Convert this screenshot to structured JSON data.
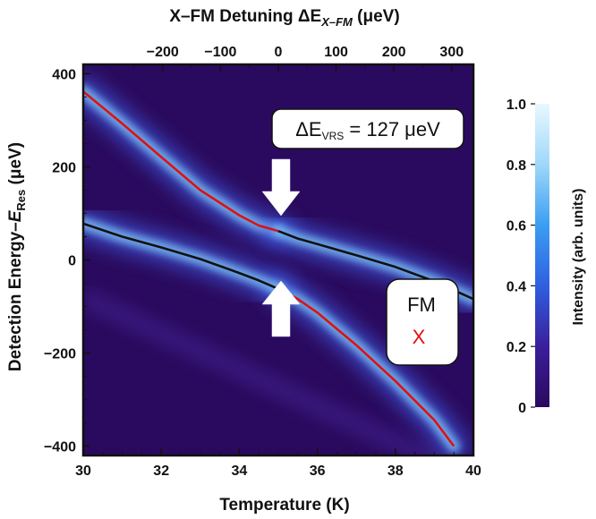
{
  "chart_data": {
    "type": "heatmap",
    "title": "",
    "xlabel": "Temperature (K)",
    "xlim": [
      30,
      40
    ],
    "x_ticks": [
      30,
      32,
      34,
      36,
      38,
      40
    ],
    "ylabel": "Detection Energy-E_Res (μeV)",
    "ylabel_parts": {
      "prefix": "Detection Energy–",
      "var": "E",
      "sub": "Res",
      "suffix": " (μeV)"
    },
    "ylim": [
      -420,
      420
    ],
    "y_ticks": [
      400,
      200,
      0,
      -200,
      -400
    ],
    "top_xlabel": "X-FM Detuning ΔE_X-FM (μeV)",
    "top_xlabel_parts": {
      "prefix": "X–FM Detuning ΔE",
      "sub": "X–FM",
      "suffix": " (μeV)"
    },
    "top_x_ticks": [
      -200,
      -100,
      0,
      100,
      200,
      300
    ],
    "top_x_ticks_labels": [
      "−200",
      "−100",
      "0",
      "100",
      "200",
      "300"
    ],
    "top_x_mapping": {
      "temperature_at_zero": 35.0,
      "detuning_per_K": 67.5
    },
    "colorbar": {
      "label": "Intensity (arb. units)",
      "range": [
        0,
        1
      ],
      "ticks": [
        0,
        0.2,
        0.4,
        0.6,
        0.8,
        1.0
      ],
      "tick_labels": [
        "0",
        "0.2",
        "0.4",
        "0.6",
        "0.8",
        "1.0"
      ],
      "colors": [
        "#2a0a5e",
        "#3a1f9a",
        "#2f5fe0",
        "#3b9ef2",
        "#9fd8f8",
        "#e8f8ff"
      ]
    },
    "series": [
      {
        "color": "#e01010",
        "segments": [
          {
            "x": [
              30.0,
              31.0,
              32.0,
              33.0,
              34.0,
              34.5,
              35.0
            ],
            "y": [
              362,
              293,
              221,
              150,
              96,
              74,
              62
            ]
          },
          {
            "x": [
              35.0,
              35.5,
              36.0,
              37.0,
              38.0,
              39.0,
              39.5
            ],
            "y": [
              -62,
              -84,
              -113,
              -183,
              -260,
              -344,
              -400
            ]
          }
        ]
      },
      {
        "color": "#111111",
        "segments": [
          {
            "x": [
              30.0,
              31.0,
              32.0,
              33.0,
              34.0,
              34.5,
              35.0
            ],
            "y": [
              78,
              50,
              27,
              2,
              -28,
              -44,
              -62
            ]
          },
          {
            "x": [
              35.0,
              35.5,
              36.0,
              37.0,
              38.0,
              39.0,
              40.0
            ],
            "y": [
              62,
              46,
              34,
              10,
              -15,
              -46,
              -84
            ]
          }
        ]
      }
    ],
    "annotations": {
      "splitting": {
        "prefix": "ΔE",
        "sub": "VRS",
        "suffix": " = 127 μeV"
      },
      "legend_fm": "FM",
      "legend_x": "X"
    },
    "colors": {
      "fm_label": "#111111",
      "x_label": "#e01010",
      "arrow": "#ffffff"
    }
  }
}
